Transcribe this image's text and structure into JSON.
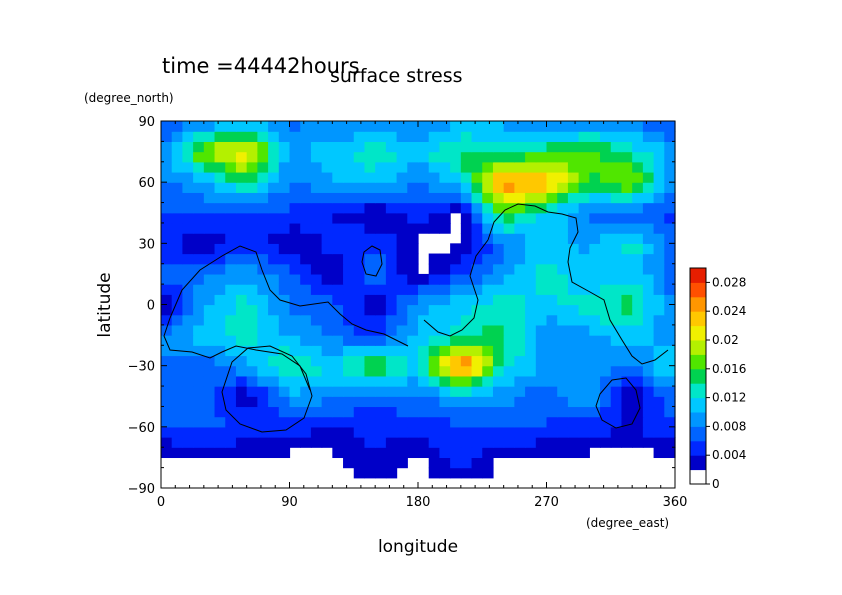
{
  "chart_data": {
    "type": "heatmap",
    "time_label": "time =44442hours",
    "title": "surface stress",
    "xlabel": "longitude",
    "ylabel": "latitude",
    "x_units": "(degree_east)",
    "y_units": "(degree_north)",
    "xlim": [
      0,
      360
    ],
    "ylim": [
      -90,
      90
    ],
    "x_ticks": [
      0,
      90,
      180,
      270,
      360
    ],
    "y_ticks": [
      -90,
      -60,
      -30,
      0,
      30,
      60,
      90
    ],
    "x_tick_labels": [
      "0",
      "90",
      "180",
      "270",
      "360"
    ],
    "y_tick_labels": [
      "−90",
      "−60",
      "−30",
      "0",
      "30",
      "60",
      "90"
    ],
    "colorbar": {
      "range": [
        0,
        0.03
      ],
      "tick_values": [
        0,
        0.004,
        0.008,
        0.012,
        0.016,
        0.02,
        0.024,
        0.028
      ],
      "tick_labels": [
        "0",
        "0.004",
        "0.008",
        "0.012",
        "0.016",
        "0.02",
        "0.024",
        "0.028"
      ],
      "colors": [
        "#ffffff",
        "#0000c8",
        "#0028ff",
        "#0064ff",
        "#0096ff",
        "#00c8ff",
        "#00e6c8",
        "#00d250",
        "#50e600",
        "#b4f000",
        "#f0f000",
        "#ffc800",
        "#ff9600",
        "#ff5000",
        "#e61e00"
      ]
    },
    "grid": false,
    "field": {
      "description_note": "",
      "lon_step": 30,
      "lat_values": [
        -90,
        -75,
        -60,
        -45,
        -30,
        -15,
        0,
        15,
        30,
        45,
        60,
        75,
        90
      ],
      "lon_values": [
        0,
        30,
        60,
        90,
        120,
        150,
        180,
        210,
        240,
        270,
        300,
        330,
        360
      ],
      "values": [
        [
          0,
          0,
          0,
          0,
          0,
          0,
          0,
          0,
          0,
          0,
          0,
          0,
          0
        ],
        [
          0,
          0,
          0,
          0,
          0,
          0.002,
          0,
          0.003,
          0,
          0,
          0,
          0,
          0
        ],
        [
          0.004,
          0.005,
          0.004,
          0.003,
          0.002,
          0.003,
          0.003,
          0.004,
          0.005,
          0.004,
          0.003,
          0.002,
          0.004
        ],
        [
          0.006,
          0.006,
          0,
          0.008,
          0.007,
          0.005,
          0.006,
          0.008,
          0.007,
          0.005,
          0.009,
          0,
          0.006
        ],
        [
          0.006,
          0.005,
          0.008,
          0.014,
          0.01,
          0.016,
          0.01,
          0.028,
          0.012,
          0.008,
          0.007,
          0.006,
          0.012
        ],
        [
          0.007,
          0.01,
          0.012,
          0.008,
          0.006,
          0.004,
          0.009,
          0.012,
          0.014,
          0.006,
          0.008,
          0.01,
          0.007
        ],
        [
          0,
          0.008,
          0.012,
          0.006,
          0.005,
          0,
          0.008,
          0.01,
          0.012,
          0.01,
          0.012,
          0.014,
          0.006
        ],
        [
          0.005,
          0.006,
          0.008,
          0.005,
          0,
          0.006,
          0,
          0.004,
          0.008,
          0.012,
          0.009,
          0.01,
          0.005
        ],
        [
          0.003,
          0,
          0.004,
          0,
          0.003,
          0.004,
          0,
          0,
          0.006,
          0.01,
          0.008,
          0.012,
          0.004
        ],
        [
          0.004,
          0.005,
          0.003,
          0.004,
          0.002,
          0,
          0.003,
          0,
          0.016,
          0.01,
          0.006,
          0.005,
          0.004
        ],
        [
          0.006,
          0.008,
          0.014,
          0.006,
          0.008,
          0.01,
          0.006,
          0.01,
          0.026,
          0.024,
          0.014,
          0.018,
          0.006
        ],
        [
          0.006,
          0.018,
          0.022,
          0.008,
          0.01,
          0.012,
          0.01,
          0.014,
          0.012,
          0.014,
          0.016,
          0.012,
          0.008
        ],
        [
          0.004,
          0.006,
          0.008,
          0.006,
          0.006,
          0.006,
          0.006,
          0.008,
          0.008,
          0.006,
          0.006,
          0.006,
          0.004
        ]
      ]
    }
  }
}
